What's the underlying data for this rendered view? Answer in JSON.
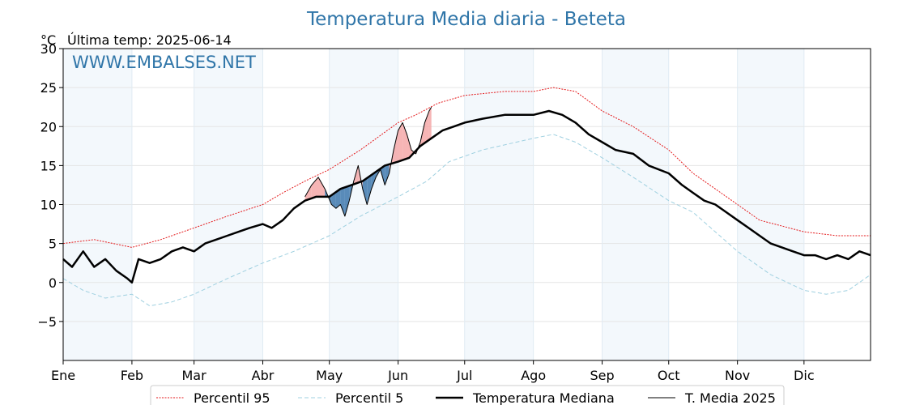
{
  "chart_data": {
    "type": "line",
    "title": "Temperatura Media diaria - Beteta",
    "ylabel": "°C",
    "subtitle": "Última temp: 2025-06-14",
    "watermark": "WWW.EMBALSES.NET",
    "ylim": [
      -10,
      30
    ],
    "yticks": [
      -5,
      0,
      5,
      10,
      15,
      20,
      25,
      30
    ],
    "ytick_labels": [
      "−5",
      "0",
      "5",
      "10",
      "15",
      "20",
      "25",
      "30"
    ],
    "x_tick_labels": [
      "Ene",
      "Feb",
      "Mar",
      "Abr",
      "May",
      "Jun",
      "Jul",
      "Ago",
      "Sep",
      "Oct",
      "Nov",
      "Dic"
    ],
    "x_tick_days": [
      1,
      32,
      60,
      91,
      121,
      152,
      182,
      213,
      244,
      274,
      305,
      335
    ],
    "grid": true,
    "legend_position": "bottom",
    "series": [
      {
        "name": "Percentil 95",
        "style": "dotted",
        "color": "#e41a1c",
        "points": [
          [
            1,
            5.0
          ],
          [
            15,
            5.5
          ],
          [
            32,
            4.5
          ],
          [
            45,
            5.5
          ],
          [
            60,
            7.0
          ],
          [
            75,
            8.5
          ],
          [
            91,
            10.0
          ],
          [
            100,
            11.5
          ],
          [
            110,
            13.0
          ],
          [
            121,
            14.5
          ],
          [
            135,
            17.0
          ],
          [
            152,
            20.5
          ],
          [
            160,
            21.5
          ],
          [
            170,
            23.0
          ],
          [
            182,
            24.0
          ],
          [
            200,
            24.5
          ],
          [
            213,
            24.5
          ],
          [
            222,
            25.0
          ],
          [
            232,
            24.5
          ],
          [
            244,
            22.0
          ],
          [
            258,
            20.0
          ],
          [
            274,
            17.0
          ],
          [
            285,
            14.0
          ],
          [
            295,
            12.0
          ],
          [
            305,
            10.0
          ],
          [
            315,
            8.0
          ],
          [
            335,
            6.5
          ],
          [
            350,
            6.0
          ],
          [
            365,
            6.0
          ]
        ]
      },
      {
        "name": "Percentil 5",
        "style": "dashed",
        "color": "#9fd0e0",
        "points": [
          [
            1,
            0.5
          ],
          [
            10,
            -1.0
          ],
          [
            20,
            -2.0
          ],
          [
            32,
            -1.5
          ],
          [
            40,
            -3.0
          ],
          [
            50,
            -2.5
          ],
          [
            60,
            -1.5
          ],
          [
            75,
            0.5
          ],
          [
            91,
            2.5
          ],
          [
            105,
            4.0
          ],
          [
            121,
            6.0
          ],
          [
            135,
            8.5
          ],
          [
            152,
            11.0
          ],
          [
            165,
            13.0
          ],
          [
            175,
            15.5
          ],
          [
            190,
            17.0
          ],
          [
            213,
            18.5
          ],
          [
            222,
            19.0
          ],
          [
            232,
            18.0
          ],
          [
            244,
            16.0
          ],
          [
            258,
            13.5
          ],
          [
            274,
            10.5
          ],
          [
            285,
            9.0
          ],
          [
            295,
            6.5
          ],
          [
            305,
            4.0
          ],
          [
            320,
            1.0
          ],
          [
            335,
            -1.0
          ],
          [
            345,
            -1.5
          ],
          [
            355,
            -1.0
          ],
          [
            365,
            1.0
          ]
        ]
      },
      {
        "name": "Temperatura Mediana",
        "style": "solid",
        "color": "#000000",
        "width": 2.5,
        "points": [
          [
            1,
            3.0
          ],
          [
            5,
            2.0
          ],
          [
            10,
            4.0
          ],
          [
            15,
            2.0
          ],
          [
            20,
            3.0
          ],
          [
            25,
            1.5
          ],
          [
            30,
            0.5
          ],
          [
            32,
            0.0
          ],
          [
            35,
            3.0
          ],
          [
            40,
            2.5
          ],
          [
            45,
            3.0
          ],
          [
            50,
            4.0
          ],
          [
            55,
            4.5
          ],
          [
            60,
            4.0
          ],
          [
            65,
            5.0
          ],
          [
            70,
            5.5
          ],
          [
            75,
            6.0
          ],
          [
            80,
            6.5
          ],
          [
            85,
            7.0
          ],
          [
            91,
            7.5
          ],
          [
            95,
            7.0
          ],
          [
            100,
            8.0
          ],
          [
            105,
            9.5
          ],
          [
            110,
            10.5
          ],
          [
            115,
            11.0
          ],
          [
            121,
            11.0
          ],
          [
            126,
            12.0
          ],
          [
            131,
            12.5
          ],
          [
            136,
            13.0
          ],
          [
            141,
            14.0
          ],
          [
            146,
            15.0
          ],
          [
            152,
            15.5
          ],
          [
            157,
            16.0
          ],
          [
            162,
            17.5
          ],
          [
            167,
            18.5
          ],
          [
            172,
            19.5
          ],
          [
            177,
            20.0
          ],
          [
            182,
            20.5
          ],
          [
            190,
            21.0
          ],
          [
            200,
            21.5
          ],
          [
            213,
            21.5
          ],
          [
            220,
            22.0
          ],
          [
            226,
            21.5
          ],
          [
            232,
            20.5
          ],
          [
            238,
            19.0
          ],
          [
            244,
            18.0
          ],
          [
            250,
            17.0
          ],
          [
            258,
            16.5
          ],
          [
            265,
            15.0
          ],
          [
            274,
            14.0
          ],
          [
            280,
            12.5
          ],
          [
            285,
            11.5
          ],
          [
            290,
            10.5
          ],
          [
            295,
            10.0
          ],
          [
            300,
            9.0
          ],
          [
            305,
            8.0
          ],
          [
            310,
            7.0
          ],
          [
            315,
            6.0
          ],
          [
            320,
            5.0
          ],
          [
            325,
            4.5
          ],
          [
            330,
            4.0
          ],
          [
            335,
            3.5
          ],
          [
            340,
            3.5
          ],
          [
            345,
            3.0
          ],
          [
            350,
            3.5
          ],
          [
            355,
            3.0
          ],
          [
            360,
            4.0
          ],
          [
            365,
            3.5
          ]
        ]
      },
      {
        "name": "T. Media 2025",
        "style": "solid",
        "color": "#000000",
        "width": 1,
        "points": [
          [
            110,
            11.0
          ],
          [
            113,
            12.5
          ],
          [
            116,
            13.5
          ],
          [
            119,
            12.0
          ],
          [
            122,
            10.0
          ],
          [
            124,
            9.5
          ],
          [
            126,
            10.0
          ],
          [
            128,
            8.5
          ],
          [
            130,
            10.5
          ],
          [
            132,
            13.0
          ],
          [
            134,
            15.0
          ],
          [
            136,
            12.0
          ],
          [
            138,
            10.0
          ],
          [
            140,
            12.0
          ],
          [
            142,
            13.5
          ],
          [
            144,
            14.5
          ],
          [
            146,
            12.5
          ],
          [
            148,
            14.0
          ],
          [
            150,
            17.0
          ],
          [
            152,
            19.5
          ],
          [
            154,
            20.5
          ],
          [
            156,
            19.0
          ],
          [
            158,
            17.0
          ],
          [
            160,
            16.5
          ],
          [
            162,
            18.0
          ],
          [
            164,
            20.5
          ],
          [
            166,
            22.0
          ],
          [
            167,
            22.5
          ]
        ]
      }
    ],
    "legend": [
      "Percentil 95",
      "Percentil 5",
      "Temperatura Mediana",
      "T. Media 2025"
    ]
  }
}
